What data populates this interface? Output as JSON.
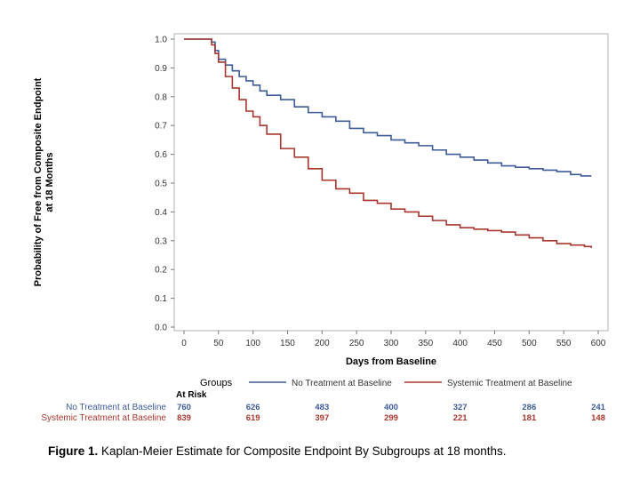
{
  "chart_data": {
    "type": "line",
    "step": true,
    "xlabel": "Days from Baseline",
    "ylabel_line1": "Probability of Free from Composite Endpoint",
    "ylabel_line2": "at 18 Months",
    "xlim": [
      0,
      600
    ],
    "ylim": [
      0.0,
      1.0
    ],
    "xticks": [
      "0",
      "50",
      "100",
      "150",
      "200",
      "250",
      "300",
      "350",
      "400",
      "450",
      "500",
      "550",
      "600"
    ],
    "yticks": [
      "0.0",
      "0.1",
      "0.2",
      "0.3",
      "0.4",
      "0.5",
      "0.6",
      "0.7",
      "0.8",
      "0.9",
      "1.0"
    ],
    "grid": false,
    "legend": {
      "title": "Groups",
      "placement": "bottom"
    },
    "series": [
      {
        "name": "No Treatment at Baseline",
        "color": "#3d5a99",
        "points": [
          [
            0,
            1.0
          ],
          [
            35,
            1.0
          ],
          [
            40,
            0.99
          ],
          [
            45,
            0.96
          ],
          [
            50,
            0.93
          ],
          [
            60,
            0.91
          ],
          [
            70,
            0.89
          ],
          [
            80,
            0.87
          ],
          [
            90,
            0.855
          ],
          [
            100,
            0.84
          ],
          [
            110,
            0.82
          ],
          [
            120,
            0.805
          ],
          [
            140,
            0.79
          ],
          [
            160,
            0.765
          ],
          [
            180,
            0.745
          ],
          [
            200,
            0.73
          ],
          [
            220,
            0.715
          ],
          [
            240,
            0.69
          ],
          [
            260,
            0.675
          ],
          [
            280,
            0.665
          ],
          [
            300,
            0.65
          ],
          [
            320,
            0.64
          ],
          [
            340,
            0.63
          ],
          [
            360,
            0.615
          ],
          [
            380,
            0.6
          ],
          [
            400,
            0.59
          ],
          [
            420,
            0.58
          ],
          [
            440,
            0.57
          ],
          [
            460,
            0.56
          ],
          [
            480,
            0.555
          ],
          [
            500,
            0.55
          ],
          [
            520,
            0.545
          ],
          [
            540,
            0.54
          ],
          [
            560,
            0.53
          ],
          [
            575,
            0.525
          ],
          [
            590,
            0.525
          ]
        ]
      },
      {
        "name": "Systemic Treatment at Baseline",
        "color": "#a8362e",
        "points": [
          [
            0,
            1.0
          ],
          [
            35,
            1.0
          ],
          [
            40,
            0.98
          ],
          [
            45,
            0.95
          ],
          [
            50,
            0.92
          ],
          [
            60,
            0.87
          ],
          [
            70,
            0.83
          ],
          [
            80,
            0.79
          ],
          [
            90,
            0.75
          ],
          [
            100,
            0.73
          ],
          [
            110,
            0.7
          ],
          [
            120,
            0.67
          ],
          [
            140,
            0.62
          ],
          [
            160,
            0.59
          ],
          [
            180,
            0.55
          ],
          [
            200,
            0.51
          ],
          [
            220,
            0.48
          ],
          [
            240,
            0.465
          ],
          [
            260,
            0.44
          ],
          [
            280,
            0.43
          ],
          [
            300,
            0.41
          ],
          [
            320,
            0.4
          ],
          [
            340,
            0.385
          ],
          [
            360,
            0.37
          ],
          [
            380,
            0.355
          ],
          [
            400,
            0.345
          ],
          [
            420,
            0.34
          ],
          [
            440,
            0.335
          ],
          [
            460,
            0.33
          ],
          [
            480,
            0.32
          ],
          [
            500,
            0.31
          ],
          [
            520,
            0.3
          ],
          [
            540,
            0.29
          ],
          [
            560,
            0.285
          ],
          [
            580,
            0.28
          ],
          [
            590,
            0.275
          ]
        ]
      }
    ]
  },
  "at_risk": {
    "title": "At Risk",
    "rows": [
      {
        "label": "No Treatment at Baseline",
        "color": "#3d5a99",
        "values": [
          "760",
          "626",
          "483",
          "400",
          "327",
          "286",
          "241"
        ]
      },
      {
        "label": "Systemic Treatment at Baseline",
        "color": "#a8362e",
        "values": [
          "839",
          "619",
          "397",
          "299",
          "221",
          "181",
          "148"
        ]
      }
    ],
    "days": [
      0,
      100,
      200,
      300,
      400,
      500,
      600
    ]
  },
  "caption": {
    "label": "Figure 1.",
    "text": " Kaplan-Meier Estimate for Composite Endpoint By Subgroups at 18 months."
  }
}
